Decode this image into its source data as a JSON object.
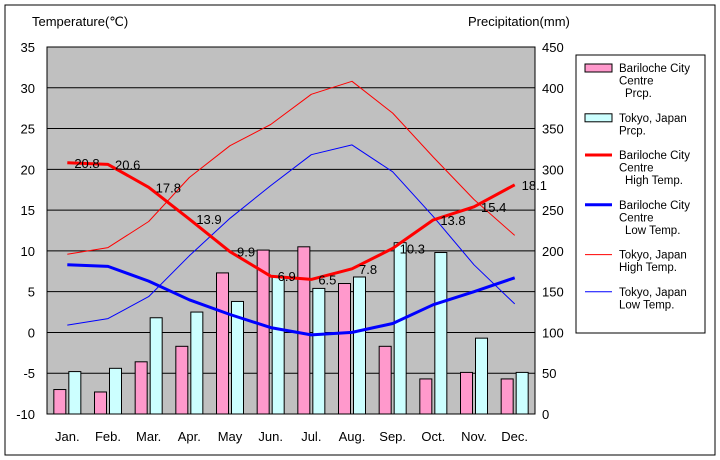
{
  "chart_data": {
    "type": "bar",
    "categories": [
      "Jan.",
      "Feb.",
      "Mar.",
      "Apr.",
      "May",
      "Jun.",
      "Jul.",
      "Aug.",
      "Sep.",
      "Oct.",
      "Nov.",
      "Dec."
    ],
    "y_left": {
      "label": "Temperature(℃)",
      "min": -10,
      "max": 35,
      "step": 5
    },
    "y_right": {
      "label": "Precipitation(mm)",
      "min": 0,
      "max": 450,
      "step": 50
    },
    "grid": true,
    "legend_position": "right",
    "series": [
      {
        "name": "Bariloche City Centre Prcp.",
        "legend_lines": [
          "Bariloche City",
          "Centre",
          "Prcp."
        ],
        "kind": "bar",
        "axis": "right",
        "color": "#ff99cc",
        "values": [
          30,
          27,
          64,
          83,
          173,
          201,
          205,
          160,
          83,
          43,
          51,
          43
        ]
      },
      {
        "name": "Tokyo, Japan Prcp.",
        "legend_lines": [
          "Tokyo, Japan",
          "Prcp."
        ],
        "kind": "bar",
        "axis": "right",
        "color": "#ccffff",
        "values": [
          52,
          56,
          118,
          125,
          138,
          168,
          154,
          168,
          210,
          198,
          93,
          51
        ]
      },
      {
        "name": "Bariloche City Centre High Temp.",
        "legend_lines": [
          "Bariloche City",
          "Centre",
          "High Temp."
        ],
        "kind": "line",
        "axis": "left",
        "color": "#ff0000",
        "width": 3,
        "labeled": true,
        "values": [
          20.8,
          20.6,
          17.8,
          13.9,
          9.9,
          6.9,
          6.5,
          7.8,
          10.3,
          13.8,
          15.4,
          18.1
        ]
      },
      {
        "name": "Bariloche City Centre Low Temp.",
        "legend_lines": [
          "Bariloche City",
          "Centre",
          "Low Temp."
        ],
        "kind": "line",
        "axis": "left",
        "color": "#0000ff",
        "width": 3,
        "labeled": false,
        "values": [
          8.3,
          8.1,
          6.3,
          4.0,
          2.2,
          0.6,
          -0.3,
          0.0,
          1.1,
          3.4,
          5.0,
          6.7
        ]
      },
      {
        "name": "Tokyo, Japan High Temp.",
        "legend_lines": [
          "Tokyo, Japan",
          "High Temp."
        ],
        "kind": "line",
        "axis": "left",
        "color": "#ff0000",
        "width": 1,
        "labeled": false,
        "values": [
          9.6,
          10.4,
          13.6,
          19.0,
          22.9,
          25.5,
          29.2,
          30.8,
          26.9,
          21.5,
          16.3,
          11.9
        ]
      },
      {
        "name": "Tokyo, Japan Low Temp.",
        "legend_lines": [
          "Tokyo, Japan",
          "Low Temp."
        ],
        "kind": "line",
        "axis": "left",
        "color": "#0000ff",
        "width": 1,
        "labeled": false,
        "values": [
          0.9,
          1.7,
          4.4,
          9.4,
          14.0,
          18.0,
          21.8,
          23.0,
          19.7,
          14.2,
          8.3,
          3.5
        ]
      }
    ]
  }
}
